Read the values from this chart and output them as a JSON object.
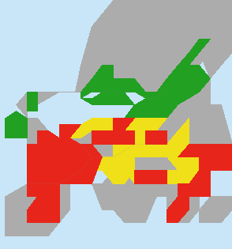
{
  "figsize": [
    2.94,
    3.15
  ],
  "dpi": 100,
  "colors": {
    "red": [
      232,
      37,
      26
    ],
    "yellow": [
      240,
      224,
      26
    ],
    "green": [
      34,
      160,
      34
    ],
    "gray": [
      172,
      172,
      172
    ],
    "white": [
      255,
      255,
      255
    ],
    "cyan": [
      96,
      200,
      224
    ],
    "light_blue": [
      176,
      220,
      240
    ],
    "ocean": [
      200,
      230,
      248
    ]
  },
  "border_lw": 0.3
}
